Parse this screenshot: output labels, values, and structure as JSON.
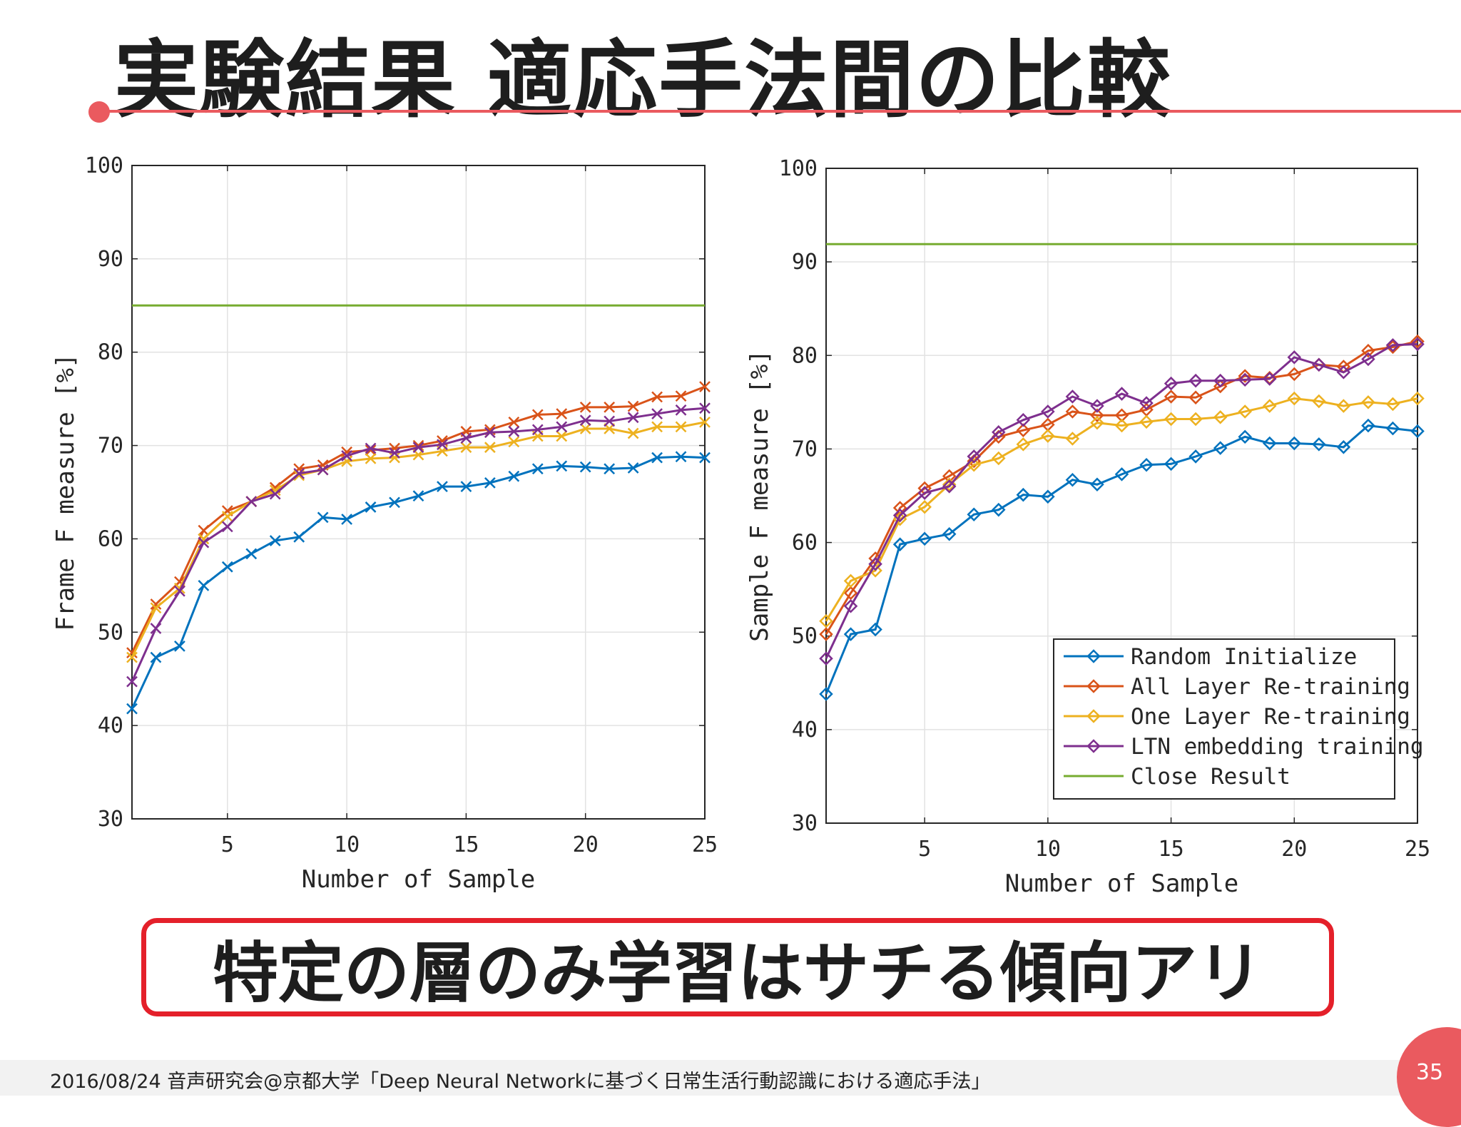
{
  "slide": {
    "title": "実験結果 適応手法間の比較",
    "callout": "特定の層のみ学習はサチる傾向アリ",
    "footer": "2016/08/24 音声研究会@京都大学「Deep Neural Networkに基づく日常生活行動認識における適応手法」",
    "page_number": "35",
    "accent_color": "#ea5a5f",
    "callout_border_color": "#e4202a"
  },
  "chart_data": [
    {
      "type": "line",
      "xlabel": "Number of Sample",
      "ylabel": "Frame F measure [%]",
      "xlim": [
        1,
        25
      ],
      "ylim": [
        30,
        100
      ],
      "xticks": [
        5,
        10,
        15,
        20,
        25
      ],
      "yticks": [
        30,
        40,
        50,
        60,
        70,
        80,
        90,
        100
      ],
      "grid": true,
      "legend": "none",
      "marker": "x",
      "x": [
        1,
        2,
        3,
        4,
        5,
        6,
        7,
        8,
        9,
        10,
        11,
        12,
        13,
        14,
        15,
        16,
        17,
        18,
        19,
        20,
        21,
        22,
        23,
        24,
        25
      ],
      "series": [
        {
          "color": "#0072bd",
          "values": [
            41.8,
            47.3,
            48.5,
            55.0,
            57.0,
            58.4,
            59.8,
            60.2,
            62.3,
            62.1,
            63.4,
            63.9,
            64.6,
            65.6,
            65.6,
            66.0,
            66.7,
            67.5,
            67.8,
            67.7,
            67.5,
            67.6,
            68.7,
            68.8,
            68.7
          ]
        },
        {
          "color": "#d95319",
          "values": [
            47.8,
            53.0,
            55.4,
            60.9,
            63.0,
            64.0,
            65.5,
            67.5,
            67.9,
            69.3,
            69.5,
            69.7,
            70.0,
            70.5,
            71.5,
            71.7,
            72.5,
            73.3,
            73.4,
            74.1,
            74.1,
            74.2,
            75.2,
            75.3,
            76.3
          ]
        },
        {
          "color": "#edb120",
          "values": [
            47.3,
            52.6,
            54.7,
            60.0,
            62.4,
            64.0,
            65.2,
            66.8,
            67.4,
            68.3,
            68.6,
            68.7,
            69.0,
            69.4,
            69.8,
            69.8,
            70.4,
            71.0,
            71.0,
            71.8,
            71.8,
            71.3,
            72.0,
            72.0,
            72.5
          ]
        },
        {
          "color": "#7e2f8e",
          "values": [
            44.7,
            50.4,
            54.4,
            59.6,
            61.3,
            64.0,
            64.8,
            67.0,
            67.4,
            68.9,
            69.7,
            69.2,
            69.8,
            70.1,
            70.8,
            71.4,
            71.5,
            71.7,
            72.0,
            72.7,
            72.6,
            73.0,
            73.4,
            73.8,
            74.0
          ]
        },
        {
          "color": "#77ac30",
          "values": [
            85,
            85,
            85,
            85,
            85,
            85,
            85,
            85,
            85,
            85,
            85,
            85,
            85,
            85,
            85,
            85,
            85,
            85,
            85,
            85,
            85,
            85,
            85,
            85,
            85
          ],
          "no_markers": true
        }
      ]
    },
    {
      "type": "line",
      "xlabel": "Number of Sample",
      "ylabel": "Sample F measure [%]",
      "xlim": [
        1,
        25
      ],
      "ylim": [
        30,
        100
      ],
      "xticks": [
        5,
        10,
        15,
        20,
        25
      ],
      "yticks": [
        30,
        40,
        50,
        60,
        70,
        80,
        90,
        100
      ],
      "grid": true,
      "legend": "bottom-right",
      "marker": "diamond",
      "x": [
        1,
        2,
        3,
        4,
        5,
        6,
        7,
        8,
        9,
        10,
        11,
        12,
        13,
        14,
        15,
        16,
        17,
        18,
        19,
        20,
        21,
        22,
        23,
        24,
        25
      ],
      "series": [
        {
          "name": "Random Initialize",
          "color": "#0072bd",
          "values": [
            43.8,
            50.2,
            50.7,
            59.8,
            60.4,
            60.9,
            63.0,
            63.5,
            65.1,
            64.9,
            66.7,
            66.2,
            67.3,
            68.3,
            68.4,
            69.2,
            70.1,
            71.3,
            70.6,
            70.6,
            70.5,
            70.2,
            72.5,
            72.2,
            71.9
          ]
        },
        {
          "name": "All Layer Re-training",
          "color": "#d95319",
          "values": [
            50.2,
            54.6,
            58.3,
            63.7,
            65.8,
            67.1,
            68.7,
            71.3,
            72.0,
            72.6,
            74.0,
            73.6,
            73.6,
            74.2,
            75.6,
            75.5,
            76.7,
            77.8,
            77.6,
            78.0,
            79.0,
            78.8,
            80.5,
            80.9,
            81.5
          ]
        },
        {
          "name": "One Layer Re-training",
          "color": "#edb120",
          "values": [
            51.6,
            55.9,
            57.0,
            62.5,
            63.8,
            66.2,
            68.3,
            69.0,
            70.5,
            71.4,
            71.1,
            72.8,
            72.5,
            72.9,
            73.2,
            73.2,
            73.4,
            74.0,
            74.6,
            75.4,
            75.1,
            74.6,
            75.0,
            74.8,
            75.4
          ]
        },
        {
          "name": "LTN embedding training",
          "color": "#7e2f8e",
          "values": [
            47.6,
            53.2,
            57.7,
            62.9,
            65.3,
            66.0,
            69.2,
            71.8,
            73.1,
            74.0,
            75.6,
            74.6,
            75.9,
            74.9,
            77.0,
            77.3,
            77.3,
            77.4,
            77.5,
            79.8,
            79.0,
            78.2,
            79.6,
            81.1,
            81.2
          ]
        },
        {
          "name": "Close Result",
          "color": "#77ac30",
          "values": [
            91.9,
            91.9,
            91.9,
            91.9,
            91.9,
            91.9,
            91.9,
            91.9,
            91.9,
            91.9,
            91.9,
            91.9,
            91.9,
            91.9,
            91.9,
            91.9,
            91.9,
            91.9,
            91.9,
            91.9,
            91.9,
            91.9,
            91.9,
            91.9,
            91.9
          ],
          "no_markers": true
        }
      ]
    }
  ]
}
